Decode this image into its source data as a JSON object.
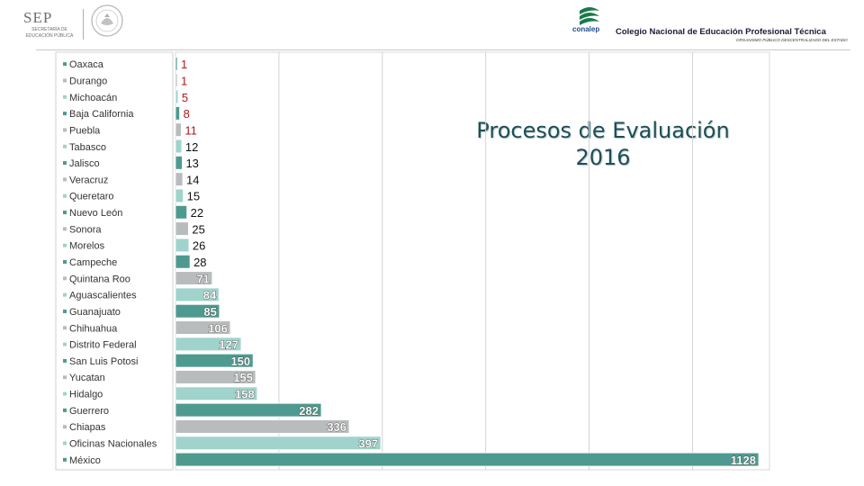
{
  "header": {
    "sep_title": "SEP",
    "sep_subtitle": "SECRETARÍA DE EDUCACIÓN PÚBLICA",
    "conalep_word": "conalep",
    "conalep_name": "Colegio Nacional de Educación Profesional Técnica",
    "conalep_org": "ORGANISMO PÚBLICO DESCENTRALIZADO DEL ESTADO"
  },
  "slide": {
    "title_line1": "Procesos de Evaluación",
    "title_line2": "2016"
  },
  "colors": {
    "teal_dark": "#4e9a90",
    "teal_light": "#9fd3cc",
    "gray": "#b9bcbc",
    "label_red": "#b01818",
    "label_dark": "#111111",
    "label_white": "#ffffff",
    "title": "#1e4e57"
  },
  "chart_data": {
    "type": "bar",
    "orientation": "horizontal",
    "categories": [
      "Oaxaca",
      "Durango",
      "Michoacán",
      "Baja California",
      "Puebla",
      "Tabasco",
      "Jalisco",
      "Veracruz",
      "Queretaro",
      "Nuevo León",
      "Sonora",
      "Morelos",
      "Campeche",
      "Quintana Roo",
      "Aguascalientes",
      "Guanajuato",
      "Chihuahua",
      "Distrito Federal",
      "San Luis Potosi",
      "Yucatan",
      "Hidalgo",
      "Guerrero",
      "Chiapas",
      "Oficinas Nacionales",
      "México"
    ],
    "values": [
      1,
      1,
      5,
      8,
      11,
      12,
      13,
      14,
      15,
      22,
      25,
      26,
      28,
      71,
      84,
      85,
      106,
      127,
      150,
      155,
      158,
      282,
      336,
      397,
      1128
    ],
    "value_labels": [
      "1",
      "1",
      "5",
      "8",
      "11",
      "12",
      "13",
      "14",
      "15",
      "22",
      "25",
      "26",
      "28",
      "71",
      "84",
      "85",
      "106",
      "127",
      "150",
      "155",
      "158",
      "282",
      "336",
      "397",
      "1128"
    ],
    "bar_colors": [
      "teal_dark",
      "gray",
      "teal_light",
      "teal_dark",
      "gray",
      "teal_light",
      "teal_dark",
      "gray",
      "teal_light",
      "teal_dark",
      "gray",
      "teal_light",
      "teal_dark",
      "gray",
      "teal_light",
      "teal_dark",
      "gray",
      "teal_light",
      "teal_dark",
      "gray",
      "teal_light",
      "teal_dark",
      "gray",
      "teal_light",
      "teal_dark"
    ],
    "label_colors": [
      "label_red",
      "label_red",
      "label_red",
      "label_red",
      "label_red",
      "label_dark",
      "label_dark",
      "label_dark",
      "label_dark",
      "label_dark",
      "label_dark",
      "label_dark",
      "label_dark",
      "label_white",
      "label_white",
      "label_white",
      "label_white",
      "label_white",
      "label_white",
      "label_white",
      "label_white",
      "label_white",
      "label_white",
      "label_white",
      "label_white"
    ],
    "xlim": [
      0,
      1128
    ],
    "grid": true,
    "legend": "left"
  }
}
